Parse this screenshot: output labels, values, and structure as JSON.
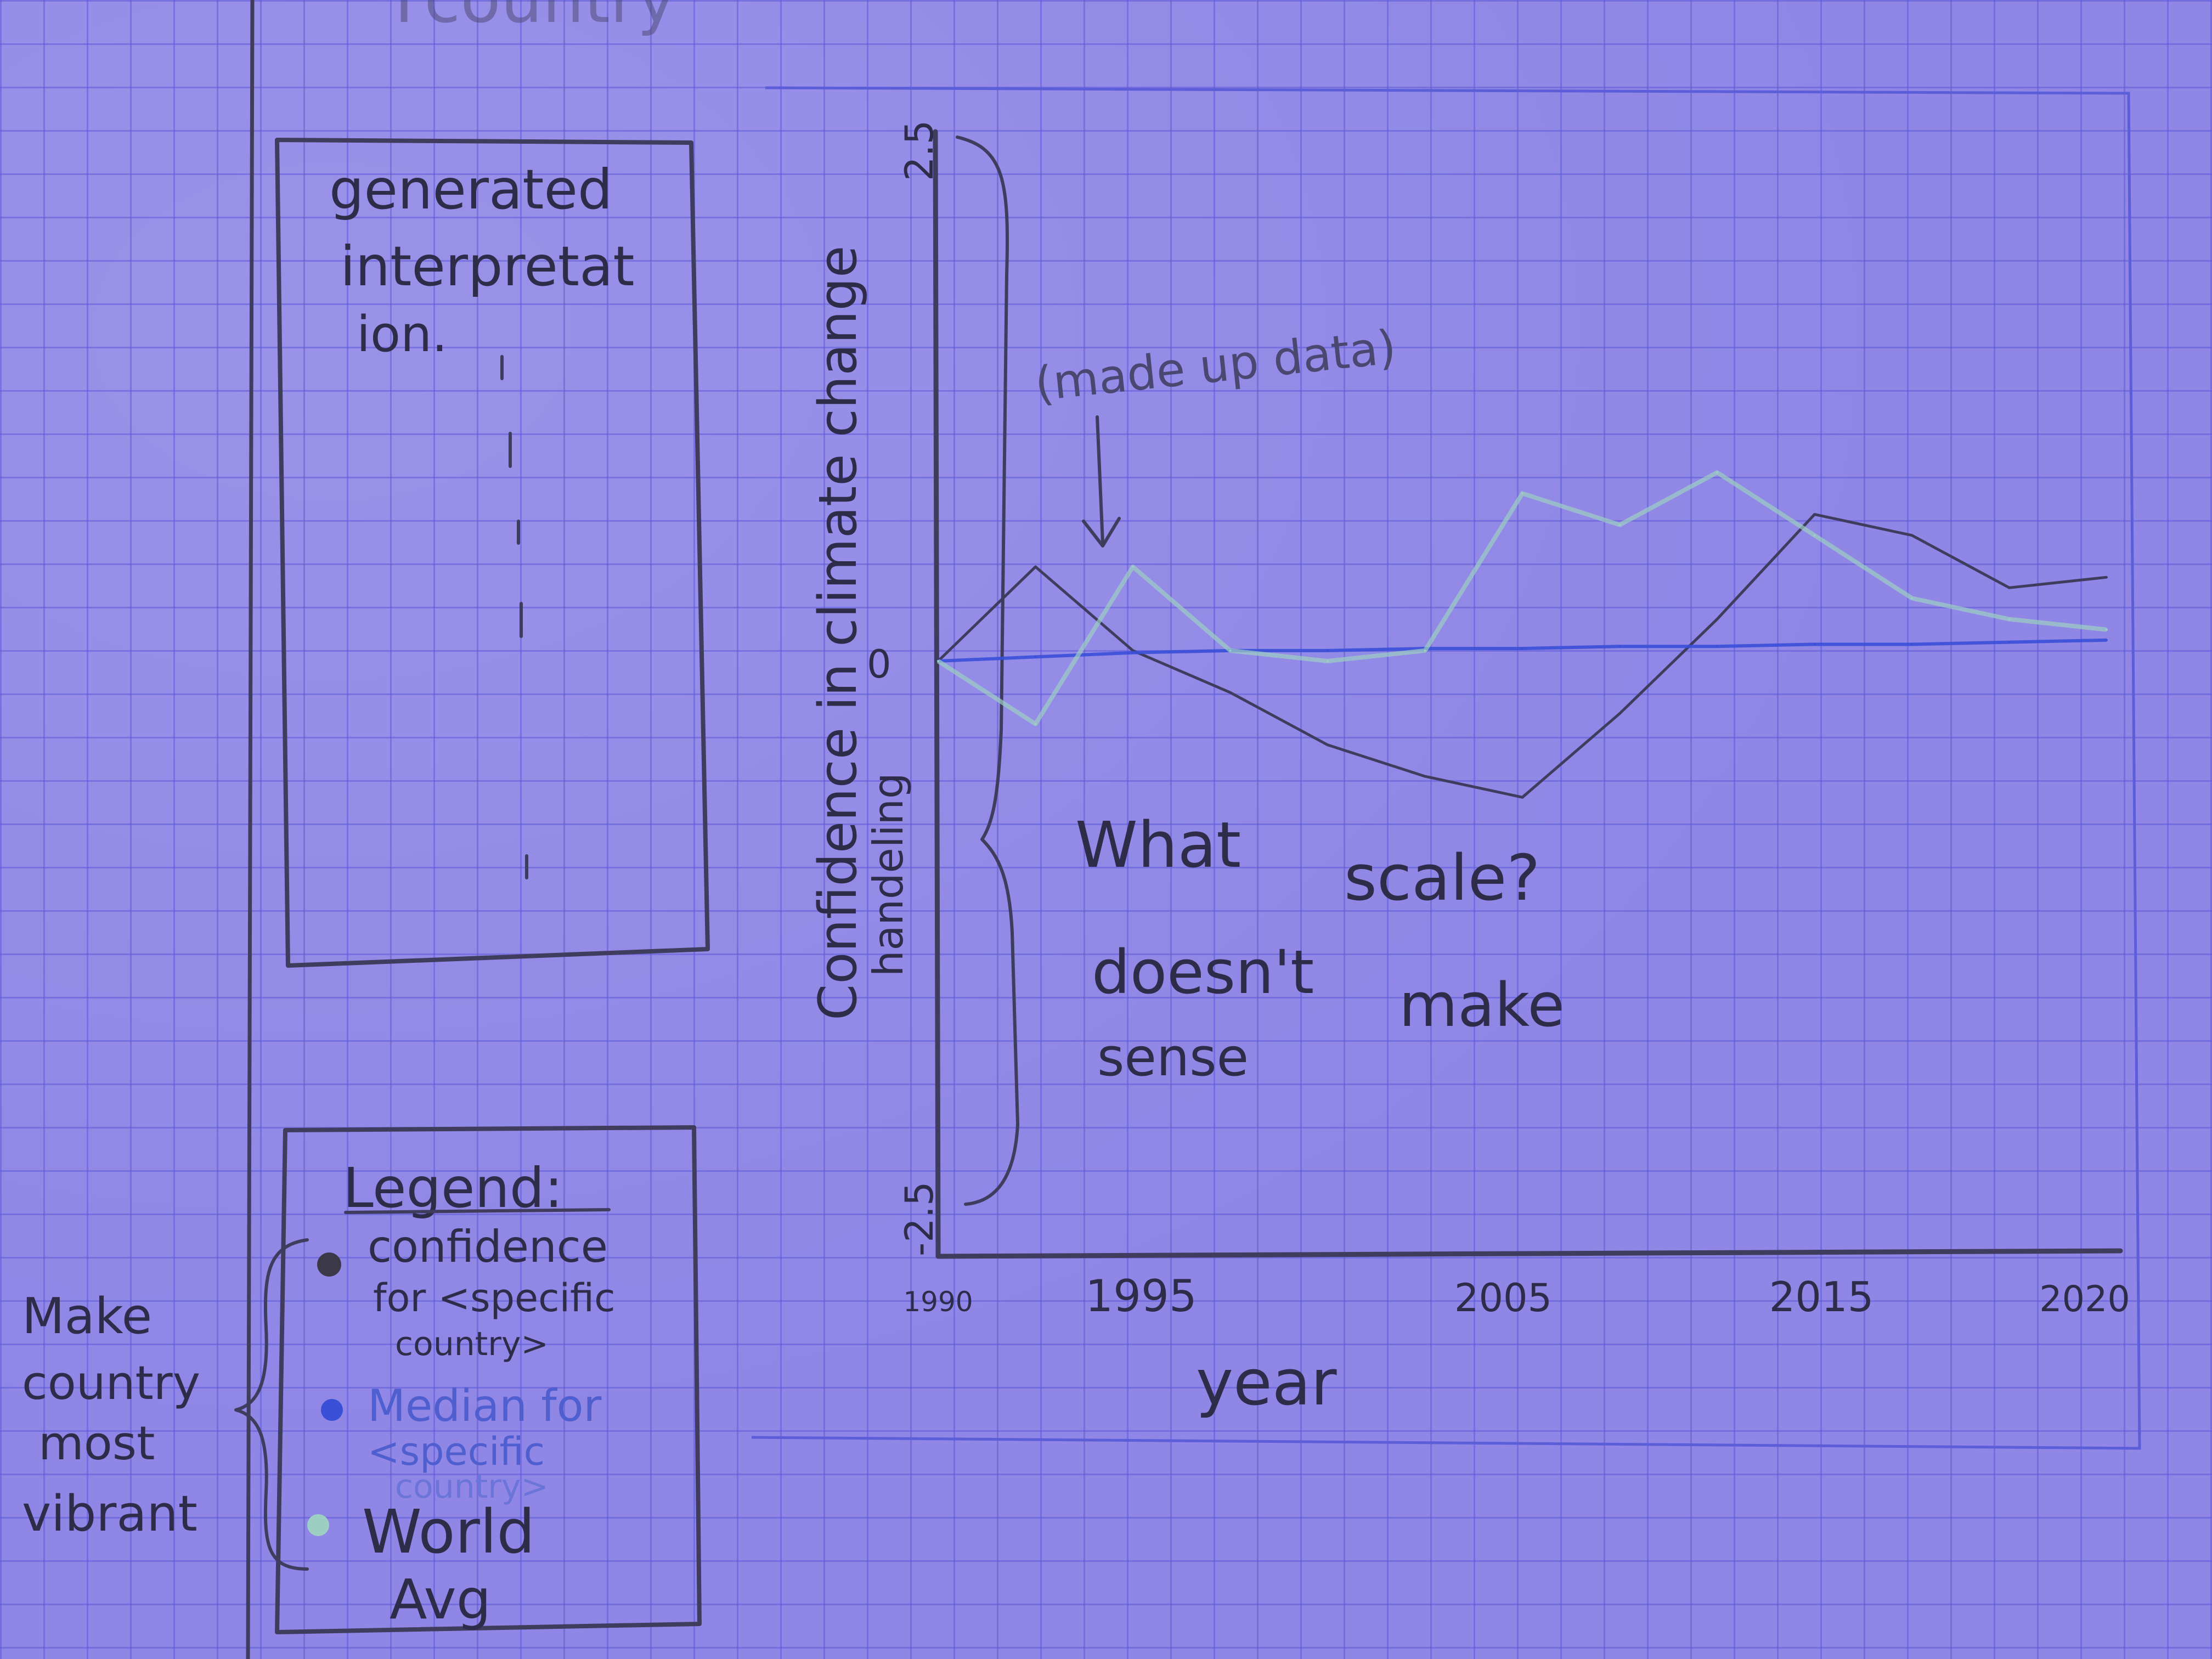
{
  "header_scribble": "Ycountry",
  "interpretation_panel": {
    "title_lines": [
      "generated",
      "interpretat",
      "ion."
    ]
  },
  "legend": {
    "title": "Legend:",
    "items": [
      {
        "lines": [
          "confidence",
          "for <specific",
          "country>"
        ],
        "dot_color": "#3b3848"
      },
      {
        "lines": [
          "Median for",
          "<specific",
          "country>"
        ],
        "dot_color": "#3a4fd8"
      },
      {
        "lines": [
          "World",
          "Avg"
        ],
        "dot_color": "#9ccfc2"
      }
    ]
  },
  "side_note": [
    "Make",
    "country",
    "most",
    "vibrant"
  ],
  "chart": {
    "y_label_lines": [
      "Confidence in climate change",
      "handeling"
    ],
    "y_top": "2.5",
    "y_zero": "0",
    "y_bottom": "-2.5",
    "x_ticks": [
      "1990",
      "1995",
      "2005",
      "2015",
      "2020"
    ],
    "x_label": "year",
    "annotation": "(made up data)",
    "question_lines": [
      "What",
      "scale?",
      "doesn't",
      "make",
      "sense"
    ]
  },
  "chart_data": {
    "type": "line",
    "xlabel": "year",
    "ylabel": "Confidence in climate change handeling",
    "ylim": [
      -2.5,
      2.5
    ],
    "x": [
      1990,
      1992.5,
      1995,
      1997.5,
      2000,
      2002.5,
      2005,
      2007.5,
      2010,
      2012.5,
      2015,
      2017.5,
      2020
    ],
    "series": [
      {
        "values": [
          0,
          0.45,
          0.05,
          -0.15,
          -0.4,
          -0.55,
          -0.65,
          -0.25,
          0.2,
          0.7,
          0.6,
          0.35,
          0.4
        ],
        "color": "#3f3c5e"
      },
      {
        "values": [
          0,
          0.02,
          0.04,
          0.05,
          0.05,
          0.06,
          0.06,
          0.07,
          0.07,
          0.08,
          0.08,
          0.09,
          0.1
        ],
        "color": "#3a4fd8"
      },
      {
        "values": [
          0,
          -0.3,
          0.45,
          0.05,
          0.0,
          0.05,
          0.8,
          0.65,
          0.9,
          0.6,
          0.3,
          0.2,
          0.15
        ],
        "color": "#9ccfc2"
      }
    ]
  }
}
